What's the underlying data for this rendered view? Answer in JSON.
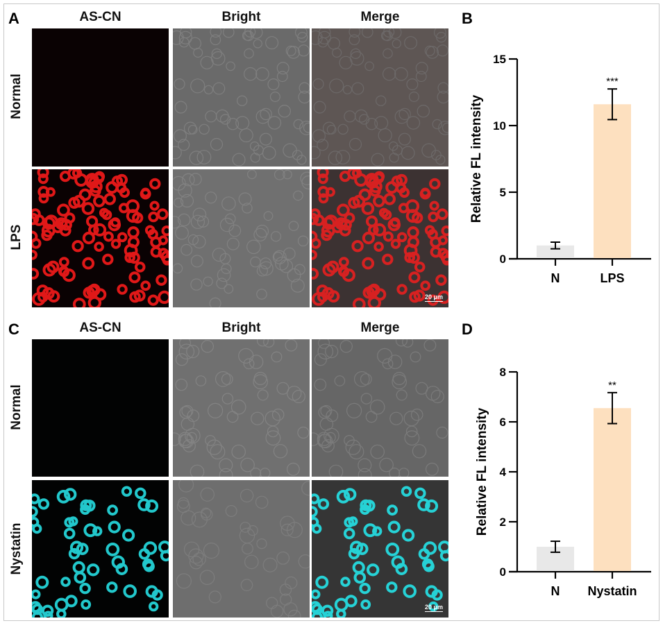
{
  "panels": {
    "A": {
      "label": "A",
      "columns": [
        "AS-CN",
        "Bright",
        "Merge"
      ],
      "rows": [
        "Normal",
        "LPS"
      ],
      "probe_color": "#e01818",
      "scale_bar": "20 μm"
    },
    "B": {
      "label": "B"
    },
    "C": {
      "label": "C",
      "columns": [
        "AS-CN",
        "Bright",
        "Merge"
      ],
      "rows": [
        "Normal",
        "Nystatin"
      ],
      "probe_color": "#22d3d8",
      "scale_bar": "20 μm"
    },
    "D": {
      "label": "D"
    }
  },
  "chart_data": [
    {
      "type": "bar",
      "panel": "B",
      "categories": [
        "N",
        "LPS"
      ],
      "values": [
        1.0,
        11.6
      ],
      "errors": [
        0.25,
        1.15
      ],
      "significance": [
        "",
        "***"
      ],
      "ylabel": "Relative FL intensity",
      "xlabel": "",
      "ylim": [
        0,
        15
      ],
      "yticks": [
        0,
        5,
        10,
        15
      ],
      "bar_colors": [
        "#e8e8e8",
        "#fde0bf"
      ]
    },
    {
      "type": "bar",
      "panel": "D",
      "categories": [
        "N",
        "Nystatin"
      ],
      "values": [
        1.0,
        6.55
      ],
      "errors": [
        0.22,
        0.62
      ],
      "significance": [
        "",
        "**"
      ],
      "ylabel": "Relative FL intensity",
      "xlabel": "",
      "ylim": [
        0,
        8
      ],
      "yticks": [
        0,
        2,
        4,
        6,
        8
      ],
      "bar_colors": [
        "#e8e8e8",
        "#fde0bf"
      ]
    }
  ]
}
